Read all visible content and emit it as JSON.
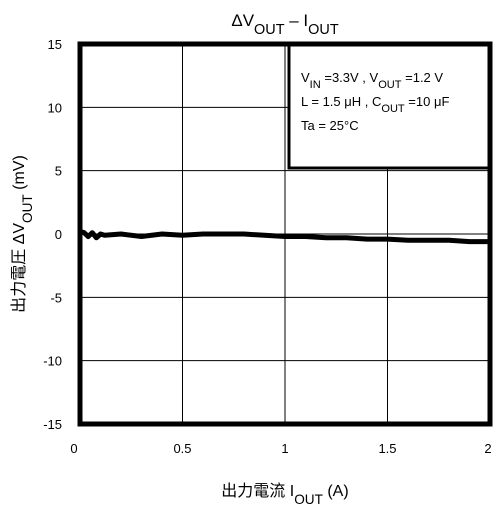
{
  "chart_data": {
    "type": "line",
    "title": {
      "main": "ΔV",
      "sub1": "OUT",
      "mid": " – I",
      "sub2": "OUT"
    },
    "xlabel": {
      "pre": "出力電流   I",
      "sub": "OUT",
      "post": "    (A)"
    },
    "ylabel": {
      "pre": "出力電圧    ΔV",
      "sub": "OUT",
      "post": "    (mV)"
    },
    "xlim": [
      0,
      2
    ],
    "ylim": [
      -15,
      15
    ],
    "xticks": [
      0,
      0.5,
      1,
      1.5,
      2
    ],
    "yticks": [
      15,
      10,
      5,
      0,
      -5,
      -10,
      -15
    ],
    "xtick_labels": [
      "0",
      "0.5",
      "1",
      "1.5",
      "2"
    ],
    "ytick_labels": [
      "15",
      "10",
      "5",
      "0",
      "-5",
      "-10",
      "-15"
    ],
    "grid": true,
    "legend_box": {
      "lines": [
        [
          {
            "t": "V"
          },
          {
            "t": "IN",
            "sub": true
          },
          {
            "t": " =3.3V , V"
          },
          {
            "t": "OUT",
            "sub": true
          },
          {
            "t": " =1.2 V"
          }
        ],
        [
          {
            "t": "L = 1.5 μH , C"
          },
          {
            "t": "OUT",
            "sub": true
          },
          {
            "t": " =10 μF"
          }
        ],
        [
          {
            "t": "Ta = 25°C"
          }
        ]
      ]
    },
    "series": [
      {
        "color": "#000000",
        "x": [
          0.0,
          0.02,
          0.04,
          0.06,
          0.08,
          0.1,
          0.12,
          0.2,
          0.3,
          0.4,
          0.5,
          0.6,
          0.7,
          0.8,
          0.9,
          1.0,
          1.1,
          1.2,
          1.3,
          1.4,
          1.5,
          1.6,
          1.7,
          1.8,
          1.9,
          2.0
        ],
        "y": [
          0.2,
          0.1,
          -0.2,
          0.1,
          -0.3,
          0.0,
          -0.1,
          0.0,
          -0.2,
          0.0,
          -0.1,
          0.0,
          0.0,
          0.0,
          -0.1,
          -0.2,
          -0.2,
          -0.3,
          -0.3,
          -0.4,
          -0.4,
          -0.5,
          -0.5,
          -0.5,
          -0.6,
          -0.6
        ]
      }
    ]
  }
}
